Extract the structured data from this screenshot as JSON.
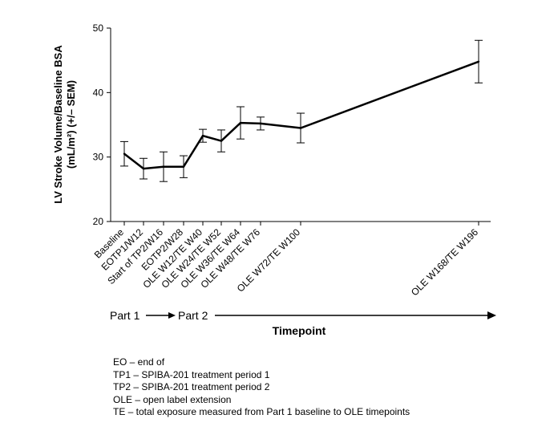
{
  "chart_data": {
    "type": "line",
    "xlabel": "Timepoint",
    "ylabel": "LV Stroke Volume/Baseline BSA",
    "ylabel_line2": "(mL/m²) (+/– SEM)",
    "ylim": [
      20,
      50
    ],
    "yticks": [
      20,
      30,
      40,
      50
    ],
    "grid": false,
    "categories": [
      "Baseline",
      "EOTP1/W12",
      "Start of TP2/W16",
      "EOTP2/W28",
      "OLE W12/TE W40",
      "OLE W24/TE W52",
      "OLE W36/TE W64",
      "OLE W48/TE W76",
      "OLE W72/TE W100",
      "OLE W168/TE W196"
    ],
    "weeks": [
      0,
      12,
      16,
      28,
      40,
      52,
      64,
      76,
      100,
      196
    ],
    "series": [
      {
        "values": [
          30.5,
          28.2,
          28.5,
          28.5,
          33.3,
          32.5,
          35.3,
          35.2,
          34.5,
          44.8
        ],
        "sem": [
          1.9,
          1.6,
          2.3,
          1.7,
          1.0,
          1.7,
          2.5,
          1.0,
          2.3,
          3.3
        ]
      }
    ],
    "phases": [
      {
        "label": "Part 1"
      },
      {
        "label": "Part 2"
      }
    ]
  },
  "legend": [
    "EO – end of",
    "TP1 – SPIBA-201 treatment period 1",
    "TP2 – SPIBA-201 treatment period 2",
    "OLE – open label extension",
    "TE – total exposure measured from Part 1 baseline to OLE timepoints"
  ],
  "colors": {
    "line": "#000000",
    "axis": "#000000"
  }
}
